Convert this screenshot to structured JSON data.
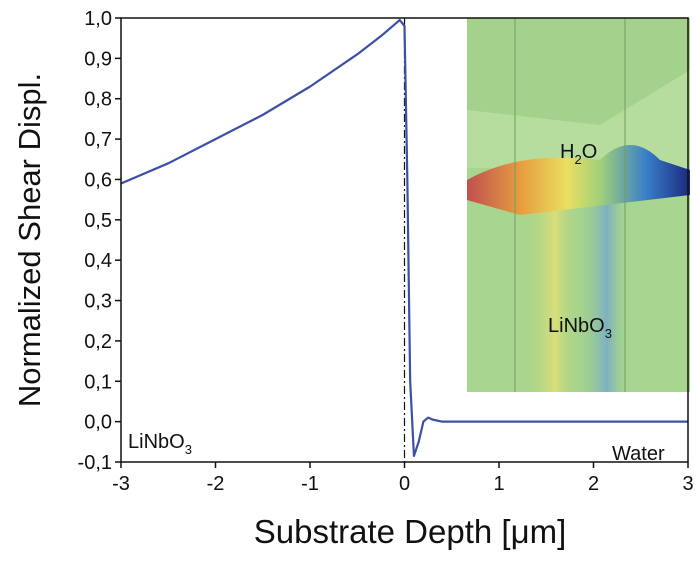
{
  "chart_data": {
    "type": "line",
    "x_label": "Substrate Depth [μm]",
    "y_label": "Normalized Shear Displ.",
    "xlim": [
      -3,
      3
    ],
    "ylim": [
      -0.1,
      1.0
    ],
    "xticks": [
      -3,
      -2,
      -1,
      0,
      1,
      2,
      3
    ],
    "yticks": [
      {
        "value": -0.1,
        "label": "-0,1"
      },
      {
        "value": 0.0,
        "label": "0,0"
      },
      {
        "value": 0.1,
        "label": "0,1"
      },
      {
        "value": 0.2,
        "label": "0,2"
      },
      {
        "value": 0.3,
        "label": "0,3"
      },
      {
        "value": 0.4,
        "label": "0,4"
      },
      {
        "value": 0.5,
        "label": "0,5"
      },
      {
        "value": 0.6,
        "label": "0,6"
      },
      {
        "value": 0.7,
        "label": "0,7"
      },
      {
        "value": 0.8,
        "label": "0,8"
      },
      {
        "value": 0.9,
        "label": "0,9"
      },
      {
        "value": 1.0,
        "label": "1,0"
      }
    ],
    "reference_line_x": 0,
    "x": [
      -3,
      -2.5,
      -2,
      -1.5,
      -1,
      -0.5,
      -0.25,
      -0.1,
      -0.05,
      0,
      0.03,
      0.06,
      0.1,
      0.15,
      0.2,
      0.25,
      0.3,
      0.4,
      0.6,
      1,
      2,
      3
    ],
    "series": [
      {
        "color": "#3c50a5",
        "values": [
          0.59,
          0.64,
          0.7,
          0.76,
          0.83,
          0.91,
          0.955,
          0.985,
          0.995,
          0.98,
          0.6,
          0.1,
          -0.085,
          -0.05,
          0.0,
          0.01,
          0.005,
          0,
          0,
          0,
          0,
          0
        ]
      }
    ],
    "annotations": [
      {
        "parts": [
          {
            "text": "LiNbO"
          },
          {
            "text": "3",
            "sub": true
          }
        ]
      },
      {
        "parts": [
          {
            "text": "Water"
          }
        ]
      },
      {
        "parts": [
          {
            "text": "H"
          },
          {
            "text": "2",
            "sub": true
          },
          {
            "text": "O"
          }
        ]
      },
      {
        "parts": [
          {
            "text": "LiNbO"
          },
          {
            "text": "3",
            "sub": true
          }
        ]
      }
    ]
  }
}
